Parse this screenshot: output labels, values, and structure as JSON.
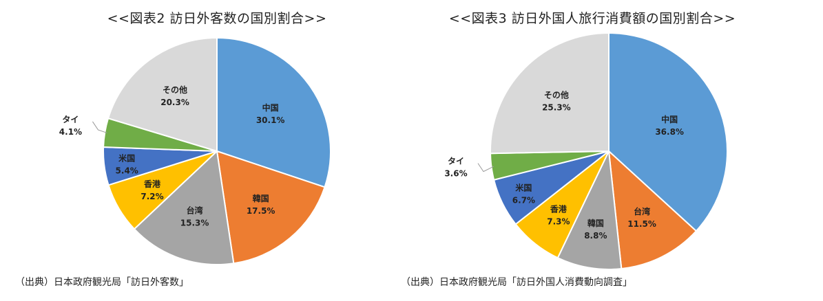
{
  "chart_data": [
    {
      "type": "pie",
      "title": "<<図表2 訪日外客数の国別割合>>",
      "source": "（出典）日本政府観光局「訪日外客数」",
      "start_angle_deg": 0,
      "direction": "clockwise",
      "slices": [
        {
          "name": "中国",
          "value": 30.1,
          "label": "30.1%",
          "color": "#5B9BD5"
        },
        {
          "name": "韓国",
          "value": 17.5,
          "label": "17.5%",
          "color": "#ED7D31"
        },
        {
          "name": "台湾",
          "value": 15.3,
          "label": "15.3%",
          "color": "#A5A5A5"
        },
        {
          "name": "香港",
          "value": 7.2,
          "label": "7.2%",
          "color": "#FFC000"
        },
        {
          "name": "米国",
          "value": 5.4,
          "label": "5.4%",
          "color": "#4472C4"
        },
        {
          "name": "タイ",
          "value": 4.1,
          "label": "4.1%",
          "color": "#70AD47"
        },
        {
          "name": "その他",
          "value": 20.3,
          "label": "20.3%",
          "color": "#D9D9D9"
        }
      ]
    },
    {
      "type": "pie",
      "title": "<<図表3 訪日外国人旅行消費額の国別割合>>",
      "source": "（出典）日本政府観光局「訪日外国人消費動向調査」",
      "start_angle_deg": 0,
      "direction": "clockwise",
      "slices": [
        {
          "name": "中国",
          "value": 36.8,
          "label": "36.8%",
          "color": "#5B9BD5"
        },
        {
          "name": "台湾",
          "value": 11.5,
          "label": "11.5%",
          "color": "#ED7D31"
        },
        {
          "name": "韓国",
          "value": 8.8,
          "label": "8.8%",
          "color": "#A5A5A5"
        },
        {
          "name": "香港",
          "value": 7.3,
          "label": "7.3%",
          "color": "#FFC000"
        },
        {
          "name": "米国",
          "value": 6.7,
          "label": "6.7%",
          "color": "#4472C4"
        },
        {
          "name": "タイ",
          "value": 3.6,
          "label": "3.6%",
          "color": "#70AD47"
        },
        {
          "name": "その他",
          "value": 25.3,
          "label": "25.3%",
          "color": "#D9D9D9"
        }
      ]
    }
  ]
}
